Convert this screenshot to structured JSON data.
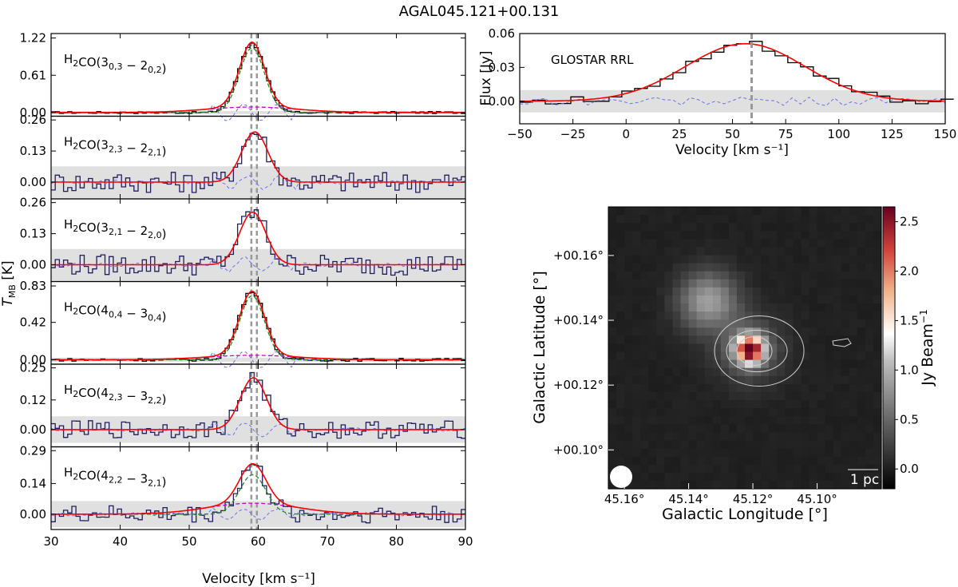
{
  "figure": {
    "title": "AGAL045.121+00.131",
    "colors": {
      "observed": "#1f1f5f",
      "observed_rrl": "#000000",
      "fit_total": "#ff0000",
      "fit_narrow": "#228b22",
      "fit_broad": "#cc00cc",
      "residual": "#7070ee",
      "noise_band": "#e0e0e0",
      "velocity_marker": "#999999"
    }
  },
  "chart_data": [
    {
      "type": "line",
      "role": "stacked spectra",
      "ylabel": "T_MB [K]",
      "xlabel": "Velocity [km s^-1]",
      "xlim": [
        30,
        90
      ],
      "xticks": [
        "30",
        "40",
        "50",
        "60",
        "70",
        "80",
        "90"
      ],
      "velocity_markers": [
        59.0,
        59.8
      ],
      "series_components": [
        "observed",
        "fit_total",
        "fit_narrow",
        "fit_broad",
        "residual"
      ],
      "panels": [
        {
          "label": "H2CO(3_0,3 − 2_0,2)",
          "yticks": [
            "0.00",
            "0.61",
            "1.22"
          ],
          "ylim": [
            0,
            1.22
          ],
          "ymin": -0.06,
          "noise": 0.02,
          "peak": 1.13,
          "center": 59.1,
          "width": 1.9,
          "has_components": true,
          "narrow_peak": 1.06,
          "broad_peak": 0.09
        },
        {
          "label": "H2CO(3_2,3 − 2_2,1)",
          "yticks": [
            "0.00",
            "0.13",
            "0.26"
          ],
          "ylim": [
            0,
            0.26
          ],
          "ymin": -0.07,
          "noise": 0.055,
          "peak": 0.21,
          "center": 59.5,
          "width": 1.9,
          "has_components": false
        },
        {
          "label": "H2CO(3_2,1 − 2_2,0)",
          "yticks": [
            "0.00",
            "0.13",
            "0.26"
          ],
          "ylim": [
            0,
            0.26
          ],
          "ymin": -0.07,
          "noise": 0.055,
          "peak": 0.22,
          "center": 59.2,
          "width": 1.9,
          "has_components": false
        },
        {
          "label": "H2CO(4_0,4 − 3_0,4)",
          "yticks": [
            "0.00",
            "0.42",
            "0.83"
          ],
          "ylim": [
            0,
            0.83
          ],
          "ymin": -0.05,
          "noise": 0.02,
          "peak": 0.77,
          "center": 59.1,
          "width": 1.9,
          "has_components": true,
          "narrow_peak": 0.72,
          "broad_peak": 0.05
        },
        {
          "label": "H2CO(4_2,3 − 3_2,2)",
          "yticks": [
            "0.00",
            "0.12",
            "0.25"
          ],
          "ylim": [
            0,
            0.25
          ],
          "ymin": -0.07,
          "noise": 0.045,
          "peak": 0.21,
          "center": 59.3,
          "width": 1.9,
          "has_components": false
        },
        {
          "label": "H2CO(4_2,2 − 3_2,1)",
          "yticks": [
            "0.00",
            "0.14",
            "0.29"
          ],
          "ylim": [
            0,
            0.29
          ],
          "ymin": -0.07,
          "noise": 0.05,
          "peak": 0.22,
          "center": 59.2,
          "width": 2.0,
          "has_components": true,
          "narrow_peak": 0.18,
          "broad_peak": 0.05
        }
      ]
    },
    {
      "type": "line",
      "role": "recombination line spectrum",
      "label": "GLOSTAR RRL",
      "ylabel": "Flux [Jy]",
      "xlabel": "Velocity [km s^-1]",
      "xlim": [
        -50,
        150
      ],
      "ylim": [
        -0.02,
        0.06
      ],
      "xticks": [
        "−50",
        "−25",
        "0",
        "25",
        "50",
        "75",
        "100",
        "125",
        "150"
      ],
      "yticks": [
        "0.00",
        "0.03",
        "0.06"
      ],
      "noise": 0.009,
      "velocity_marker": 59.0,
      "fit": {
        "peak": 0.051,
        "center": 56,
        "sigma": 28
      }
    },
    {
      "type": "heatmap",
      "role": "continuum image",
      "xlabel": "Galactic Longitude [°]",
      "ylabel": "Galactic Latitude [°]",
      "xticks": [
        "45.16°",
        "45.14°",
        "45.12°",
        "45.10°"
      ],
      "yticks": [
        "+00.10°",
        "+00.12°",
        "+00.14°",
        "+00.16°"
      ],
      "colorbar": {
        "label": "Jy Beam^-1",
        "range": [
          -0.2,
          2.65
        ],
        "ticks": [
          "0.0",
          "0.5",
          "1.0",
          "1.5",
          "2.0",
          "2.5"
        ]
      },
      "scalebar": "1 pc",
      "sources": [
        {
          "name": "compact",
          "l": 45.121,
          "b": 0.131,
          "peak": 2.6
        },
        {
          "name": "diffuse",
          "l": 45.134,
          "b": 0.146,
          "peak": 0.8
        }
      ]
    }
  ]
}
